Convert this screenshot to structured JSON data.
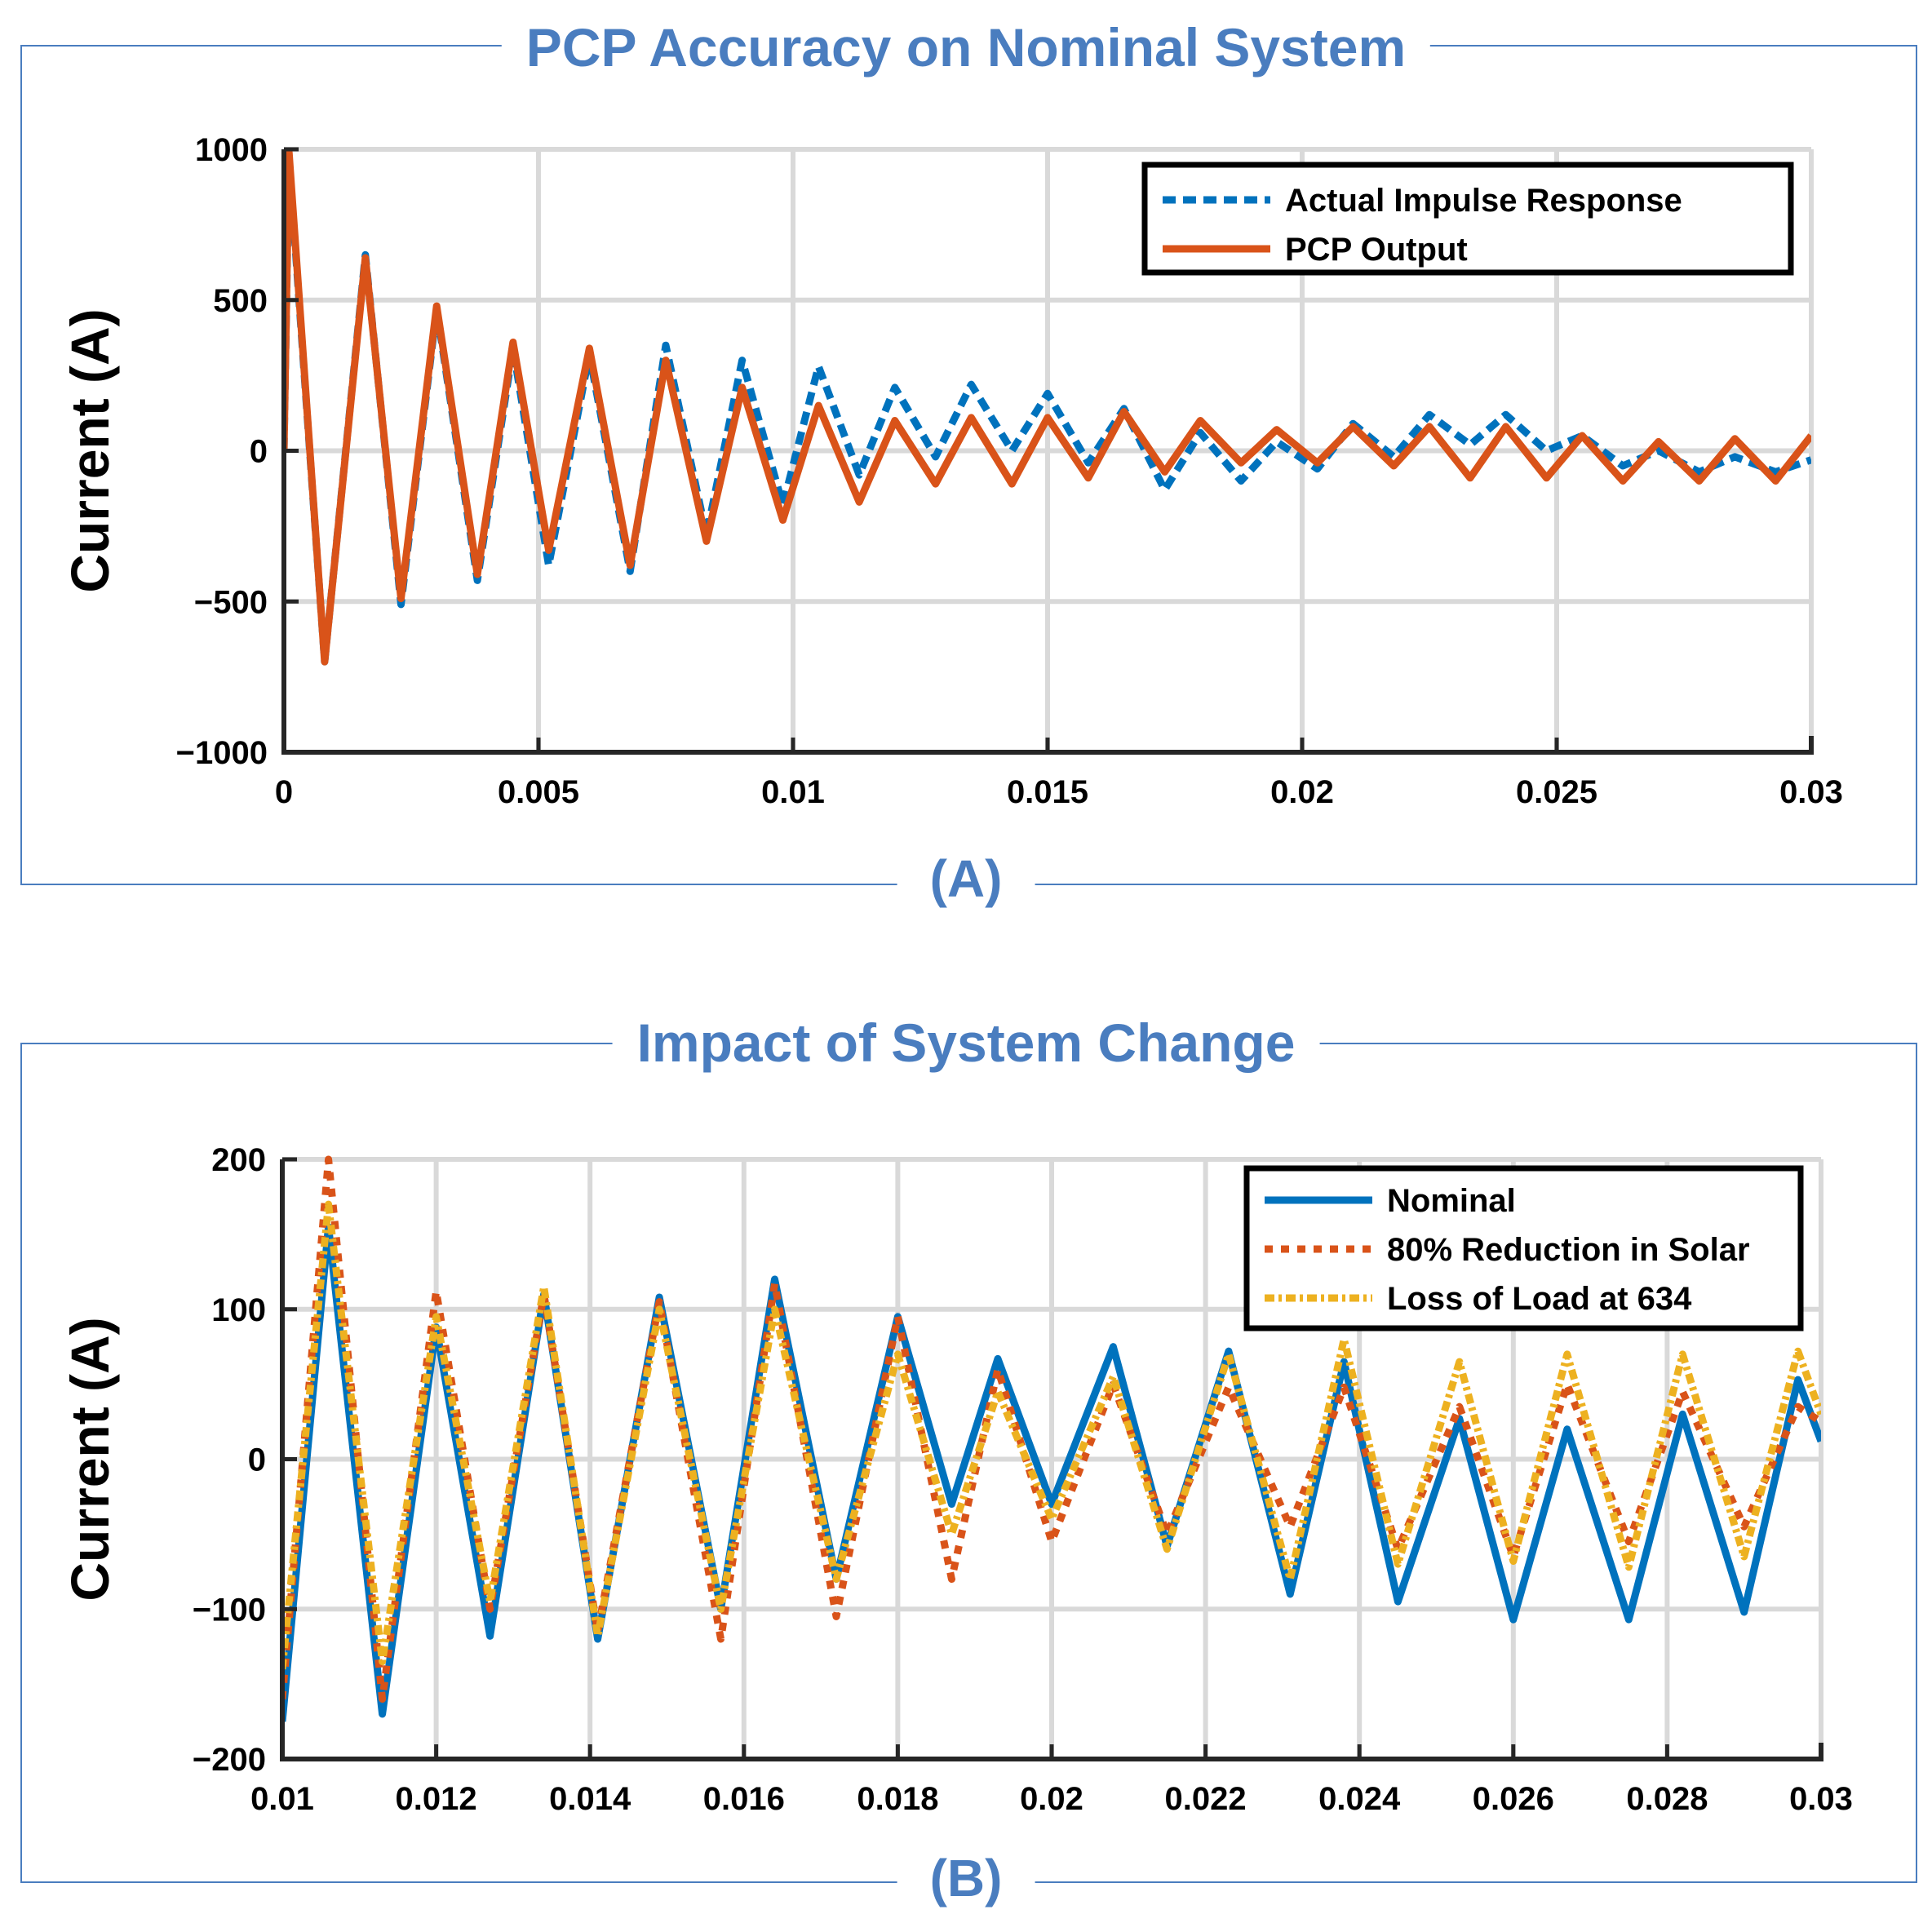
{
  "panels": [
    {
      "title": "PCP Accuracy on Nominal System",
      "label": "(A)",
      "ylabel": "Current (A)"
    },
    {
      "title": "Impact of System Change",
      "label": "(B)",
      "ylabel": "Current (A)"
    }
  ],
  "chart_data": [
    {
      "type": "line",
      "title": "PCP Accuracy on Nominal System",
      "xlabel": "",
      "ylabel": "Current (A)",
      "xlim": [
        0,
        0.03
      ],
      "ylim": [
        -1000,
        1000
      ],
      "xticks": [
        0,
        0.005,
        0.01,
        0.015,
        0.02,
        0.025,
        0.03
      ],
      "xtick_labels": [
        "0",
        "0.005",
        "0.01",
        "0.015",
        "0.02",
        "0.025",
        "0.03"
      ],
      "yticks": [
        -1000,
        -500,
        0,
        500,
        1000
      ],
      "ytick_labels": [
        "−1000",
        "−500",
        "0",
        "500",
        "1000"
      ],
      "grid": true,
      "legend_position": "top-right",
      "series": [
        {
          "name": "Actual Impulse Response",
          "color": "#0072bd",
          "style": "dashed",
          "x": [
            0,
            0.0001,
            0.0008,
            0.0016,
            0.0023,
            0.003,
            0.0038,
            0.0045,
            0.0052,
            0.006,
            0.0068,
            0.0075,
            0.0083,
            0.009,
            0.0098,
            0.0105,
            0.0113,
            0.012,
            0.0128,
            0.0135,
            0.0143,
            0.015,
            0.0158,
            0.0165,
            0.0173,
            0.018,
            0.0188,
            0.0195,
            0.0203,
            0.021,
            0.0218,
            0.0225,
            0.0233,
            0.024,
            0.0248,
            0.0255,
            0.0263,
            0.027,
            0.0278,
            0.0285,
            0.0293,
            0.03
          ],
          "y": [
            0,
            970,
            -700,
            650,
            -510,
            470,
            -430,
            340,
            -380,
            320,
            -400,
            350,
            -280,
            300,
            -180,
            280,
            -80,
            210,
            -20,
            220,
            0,
            190,
            -40,
            140,
            -130,
            60,
            -100,
            30,
            -60,
            90,
            -20,
            120,
            20,
            120,
            0,
            50,
            -50,
            0,
            -70,
            -20,
            -70,
            -30
          ]
        },
        {
          "name": "PCP Output",
          "color": "#d95319",
          "style": "solid",
          "x": [
            0,
            0.0001,
            0.0008,
            0.0016,
            0.0023,
            0.003,
            0.0038,
            0.0045,
            0.0052,
            0.006,
            0.0068,
            0.0075,
            0.0083,
            0.009,
            0.0098,
            0.0105,
            0.0113,
            0.012,
            0.0128,
            0.0135,
            0.0143,
            0.015,
            0.0158,
            0.0165,
            0.0173,
            0.018,
            0.0188,
            0.0195,
            0.0203,
            0.021,
            0.0218,
            0.0225,
            0.0233,
            0.024,
            0.0248,
            0.0255,
            0.0263,
            0.027,
            0.0278,
            0.0285,
            0.0293,
            0.03
          ],
          "y": [
            0,
            990,
            -700,
            640,
            -490,
            480,
            -410,
            360,
            -330,
            340,
            -380,
            300,
            -300,
            210,
            -230,
            150,
            -170,
            100,
            -110,
            110,
            -110,
            110,
            -90,
            130,
            -70,
            100,
            -40,
            70,
            -40,
            80,
            -50,
            80,
            -90,
            80,
            -90,
            50,
            -100,
            30,
            -100,
            40,
            -100,
            50
          ]
        }
      ]
    },
    {
      "type": "line",
      "title": "Impact of System Change",
      "xlabel": "",
      "ylabel": "Current (A)",
      "xlim": [
        0.01,
        0.03
      ],
      "ylim": [
        -200,
        200
      ],
      "xticks": [
        0.01,
        0.012,
        0.014,
        0.016,
        0.018,
        0.02,
        0.022,
        0.024,
        0.026,
        0.028,
        0.03
      ],
      "xtick_labels": [
        "0.01",
        "0.012",
        "0.014",
        "0.016",
        "0.018",
        "0.02",
        "0.022",
        "0.024",
        "0.026",
        "0.028",
        "0.03"
      ],
      "yticks": [
        -200,
        -100,
        0,
        100,
        200
      ],
      "ytick_labels": [
        "−200",
        "−100",
        "0",
        "100",
        "200"
      ],
      "grid": true,
      "legend_position": "top-right",
      "series": [
        {
          "name": "Nominal",
          "color": "#0072bd",
          "style": "solid",
          "x": [
            0.01,
            0.0106,
            0.0113,
            0.012,
            0.0127,
            0.0134,
            0.0141,
            0.0149,
            0.0157,
            0.0164,
            0.0172,
            0.018,
            0.0187,
            0.0193,
            0.02,
            0.0208,
            0.0215,
            0.0223,
            0.0231,
            0.0238,
            0.0245,
            0.0253,
            0.026,
            0.0267,
            0.0275,
            0.0282,
            0.029,
            0.0297,
            0.03
          ],
          "y": [
            -175,
            155,
            -170,
            88,
            -118,
            110,
            -120,
            108,
            -100,
            120,
            -80,
            95,
            -30,
            67,
            -30,
            75,
            -58,
            72,
            -90,
            65,
            -95,
            27,
            -107,
            20,
            -107,
            30,
            -102,
            53,
            12
          ]
        },
        {
          "name": "80% Reduction in Solar",
          "color": "#d95319",
          "style": "dotted",
          "x": [
            0.01,
            0.0106,
            0.0113,
            0.012,
            0.0127,
            0.0134,
            0.0141,
            0.0149,
            0.0157,
            0.0164,
            0.0172,
            0.018,
            0.0187,
            0.0193,
            0.02,
            0.0208,
            0.0215,
            0.0223,
            0.0231,
            0.0238,
            0.0245,
            0.0253,
            0.026,
            0.0267,
            0.0275,
            0.0282,
            0.029,
            0.0297,
            0.03
          ],
          "y": [
            -160,
            200,
            -160,
            112,
            -100,
            110,
            -115,
            105,
            -120,
            117,
            -105,
            95,
            -80,
            60,
            -55,
            50,
            -50,
            48,
            -45,
            48,
            -60,
            35,
            -65,
            50,
            -55,
            45,
            -45,
            35,
            25
          ]
        },
        {
          "name": "Loss of Load at 634",
          "color": "#edb120",
          "style": "dash-dot",
          "x": [
            0.01,
            0.0106,
            0.0113,
            0.012,
            0.0127,
            0.0134,
            0.0141,
            0.0149,
            0.0157,
            0.0164,
            0.0172,
            0.018,
            0.0187,
            0.0193,
            0.02,
            0.0208,
            0.0215,
            0.0223,
            0.0231,
            0.0238,
            0.0245,
            0.0253,
            0.026,
            0.0267,
            0.0275,
            0.0282,
            0.029,
            0.0297,
            0.03
          ],
          "y": [
            -140,
            170,
            -135,
            95,
            -95,
            115,
            -118,
            100,
            -100,
            100,
            -80,
            70,
            -50,
            45,
            -40,
            55,
            -60,
            70,
            -80,
            80,
            -70,
            65,
            -68,
            70,
            -72,
            70,
            -65,
            72,
            30
          ]
        }
      ]
    }
  ]
}
